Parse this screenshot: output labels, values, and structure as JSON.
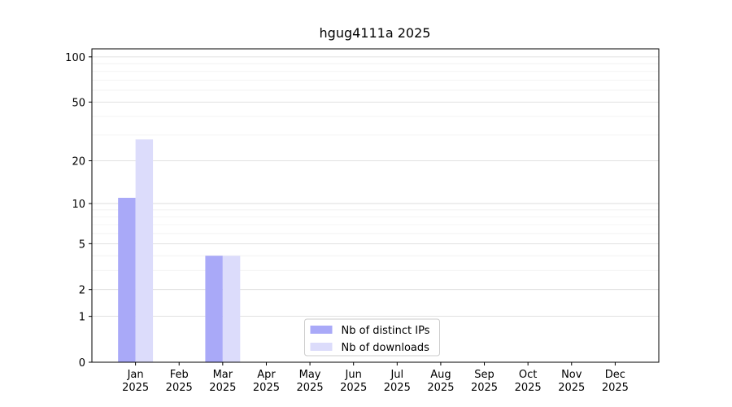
{
  "chart_data": {
    "type": "bar",
    "title": "hgug4111a 2025",
    "categories": [
      "Jan\n2025",
      "Feb\n2025",
      "Mar\n2025",
      "Apr\n2025",
      "May\n2025",
      "Jun\n2025",
      "Jul\n2025",
      "Aug\n2025",
      "Sep\n2025",
      "Oct\n2025",
      "Nov\n2025",
      "Dec\n2025"
    ],
    "series": [
      {
        "name": "Nb of distinct IPs",
        "color": "#a9a9f8",
        "values": [
          11,
          0,
          4,
          0,
          0,
          0,
          0,
          0,
          0,
          0,
          0,
          0
        ]
      },
      {
        "name": "Nb of downloads",
        "color": "#dcdcfb",
        "values": [
          28,
          0,
          4,
          0,
          0,
          0,
          0,
          0,
          0,
          0,
          0,
          0
        ]
      }
    ],
    "yscale": "log1p",
    "ylim": [
      0,
      113
    ],
    "yticks": [
      0,
      1,
      2,
      5,
      10,
      20,
      50,
      100
    ],
    "minor_yticks": [
      3,
      4,
      6,
      7,
      8,
      9,
      30,
      40,
      60,
      70,
      80,
      90
    ],
    "grid": true,
    "legend": "lower center"
  }
}
